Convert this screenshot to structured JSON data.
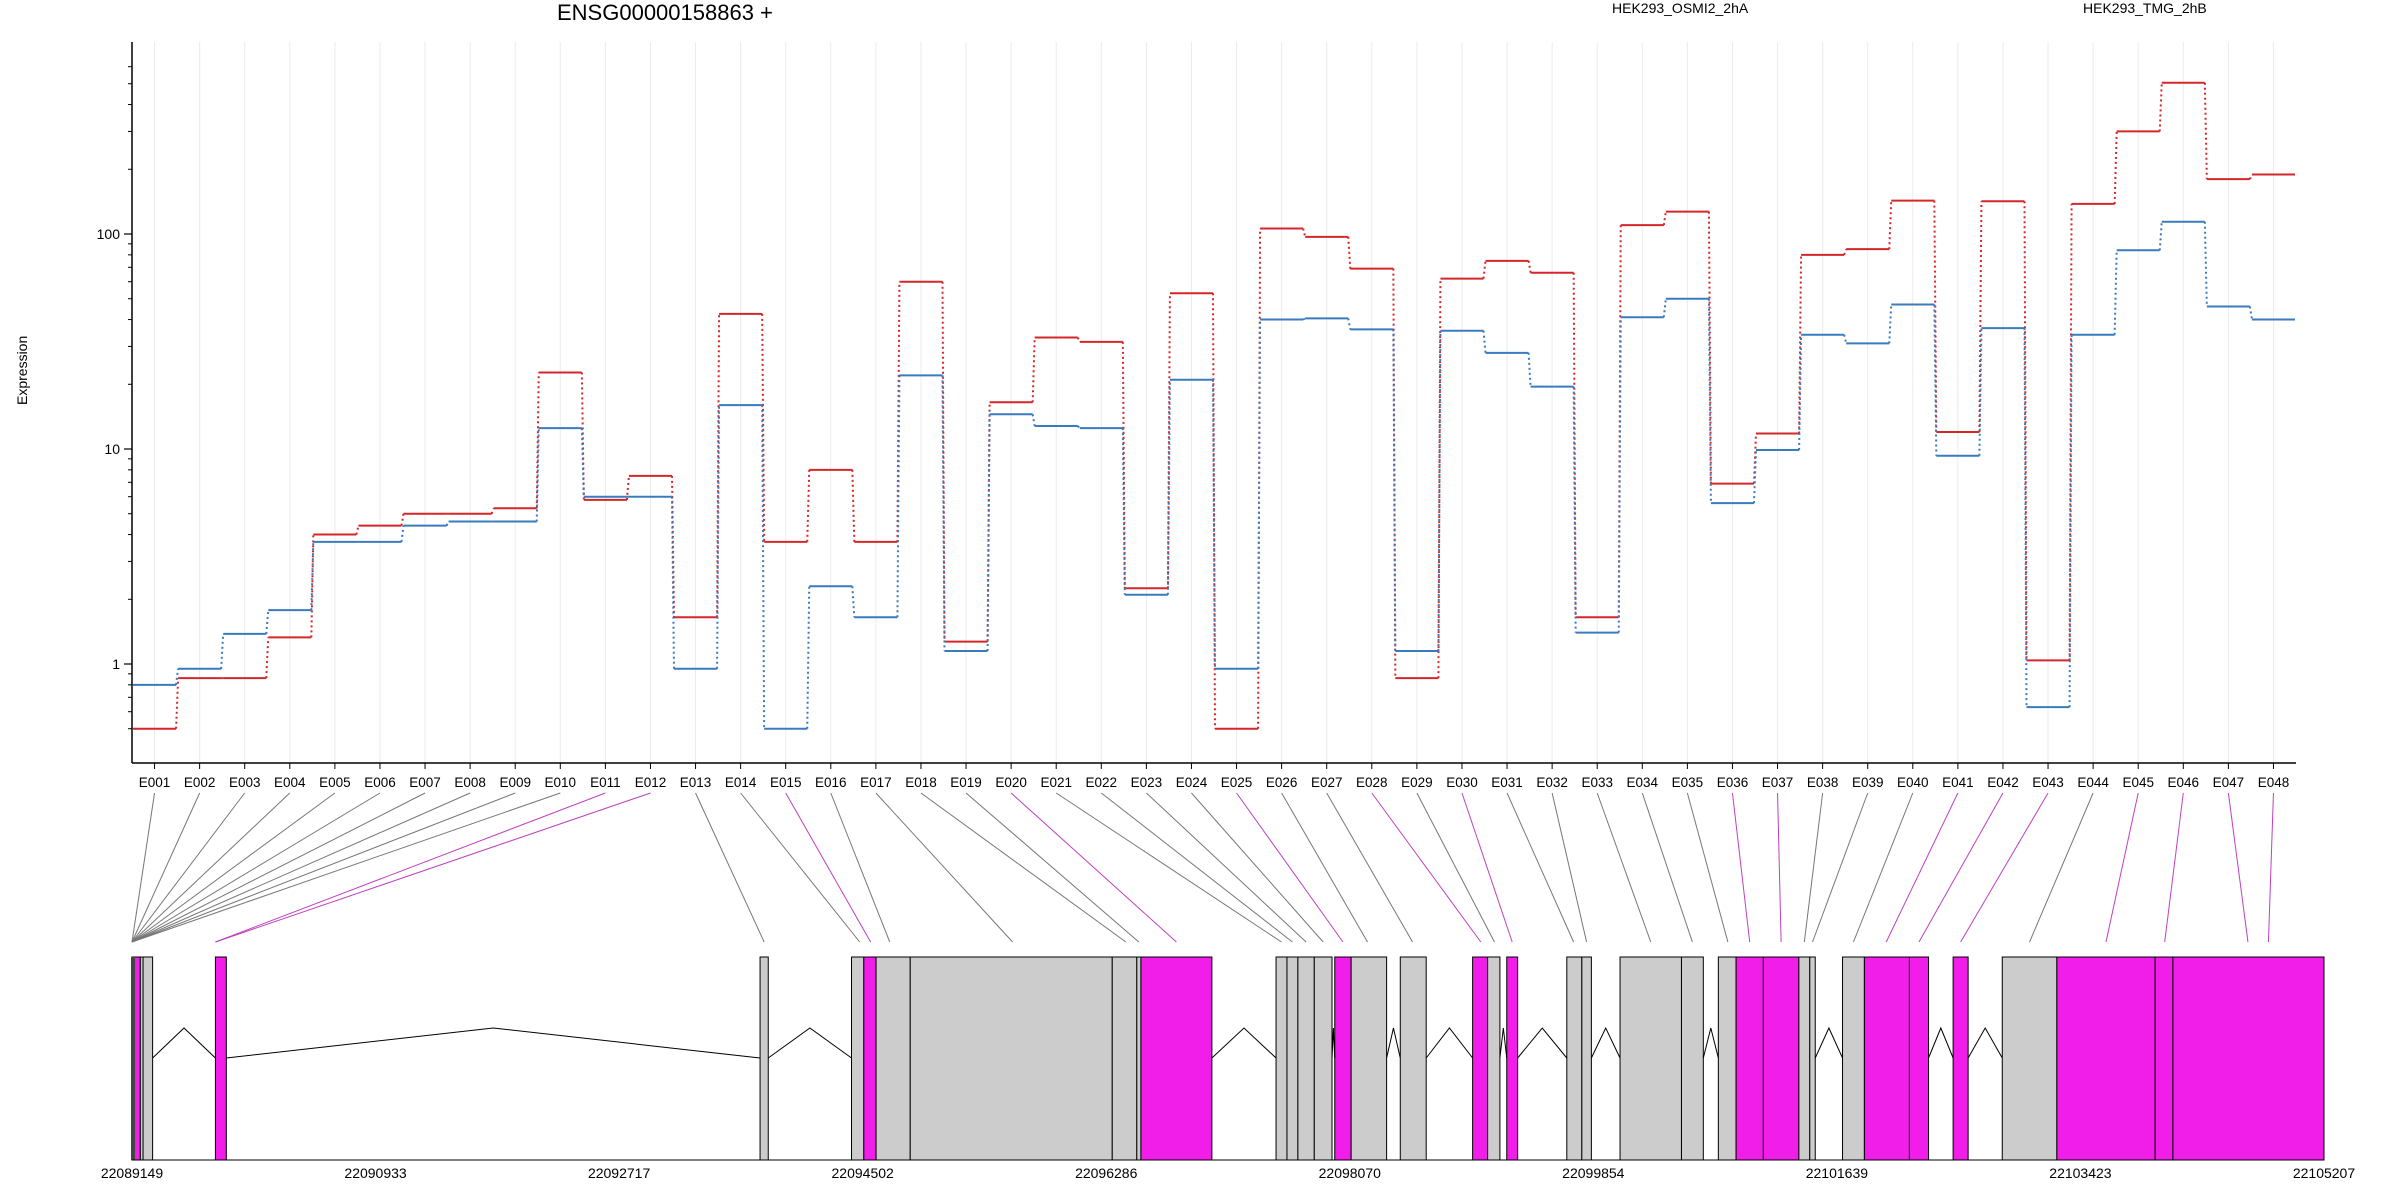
{
  "chart_data": {
    "type": "line",
    "title": "ENSG00000158863 +",
    "ylabel": "Expression",
    "yscale": "log",
    "yticks": [
      1,
      10,
      100
    ],
    "ytick_labels": [
      "1",
      "10",
      "100"
    ],
    "grid": "vertical",
    "legend_position": "top-right",
    "categories": [
      "E001",
      "E002",
      "E003",
      "E004",
      "E005",
      "E006",
      "E007",
      "E008",
      "E009",
      "E010",
      "E011",
      "E012",
      "E013",
      "E014",
      "E015",
      "E016",
      "E017",
      "E018",
      "E019",
      "E020",
      "E021",
      "E022",
      "E023",
      "E024",
      "E025",
      "E026",
      "E027",
      "E028",
      "E029",
      "E030",
      "E031",
      "E032",
      "E033",
      "E034",
      "E035",
      "E036",
      "E037",
      "E038",
      "E039",
      "E040",
      "E041",
      "E042",
      "E043",
      "E044",
      "E045",
      "E046",
      "E047",
      "E048"
    ],
    "series": [
      {
        "name": "HEK293_OSMI2_2hA",
        "color": "#d62728",
        "values": [
          0.5,
          0.86,
          0.86,
          1.33,
          4.0,
          4.4,
          5.0,
          5.0,
          5.3,
          22.7,
          5.8,
          7.5,
          1.65,
          42.5,
          3.7,
          8.0,
          3.7,
          60.0,
          1.27,
          16.5,
          33.0,
          31.5,
          2.25,
          53.0,
          0.5,
          106,
          97,
          69,
          0.86,
          62,
          75,
          66,
          1.65,
          110,
          127,
          6.9,
          11.8,
          80,
          85,
          143,
          12.0,
          142,
          1.04,
          138,
          300,
          505,
          180,
          189
        ]
      },
      {
        "name": "HEK293_TMG_2hB",
        "color": "#3a7bbf",
        "values": [
          0.8,
          0.95,
          1.38,
          1.78,
          3.7,
          3.7,
          4.4,
          4.6,
          4.6,
          12.5,
          6.0,
          6.0,
          0.95,
          16.0,
          0.5,
          2.3,
          1.65,
          22.0,
          1.15,
          14.5,
          12.8,
          12.5,
          2.1,
          21.0,
          0.95,
          40,
          40.5,
          36,
          1.15,
          35.5,
          28,
          19.5,
          1.4,
          41,
          50,
          5.6,
          9.9,
          34,
          31,
          47,
          9.3,
          36.5,
          0.63,
          34,
          84,
          114,
          46,
          40
        ]
      }
    ],
    "genomic_axis": {
      "tick_labels": [
        "22089149",
        "22090933",
        "22092717",
        "22094502",
        "22096286",
        "22098070",
        "22099854",
        "22101639",
        "22103423",
        "22105207"
      ],
      "range": [
        22089149,
        22105207
      ]
    },
    "exon_blocks": [
      [
        22089149,
        22089165,
        "grey"
      ],
      [
        22089165,
        22089210,
        "magenta"
      ],
      [
        22089210,
        22089230,
        "grey"
      ],
      [
        22089230,
        22089300,
        "grey"
      ],
      [
        22089760,
        22089840,
        "magenta"
      ],
      [
        22093750,
        22093810,
        "grey"
      ],
      [
        22094420,
        22094510,
        "grey"
      ],
      [
        22094510,
        22094600,
        "magenta"
      ],
      [
        22094600,
        22094850,
        "grey"
      ],
      [
        22094850,
        22096330,
        "grey"
      ],
      [
        22096330,
        22096510,
        "grey"
      ],
      [
        22096510,
        22096540,
        "grey"
      ],
      [
        22096540,
        22097060,
        "magenta"
      ],
      [
        22097530,
        22097610,
        "grey"
      ],
      [
        22097610,
        22097690,
        "grey"
      ],
      [
        22097690,
        22097810,
        "grey"
      ],
      [
        22097810,
        22097940,
        "grey"
      ],
      [
        22097960,
        22098080,
        "magenta"
      ],
      [
        22098080,
        22098340,
        "grey"
      ],
      [
        22098440,
        22098630,
        "grey"
      ],
      [
        22098970,
        22099080,
        "magenta"
      ],
      [
        22099080,
        22099170,
        "grey"
      ],
      [
        22099220,
        22099300,
        "magenta"
      ],
      [
        22099660,
        22099770,
        "grey"
      ],
      [
        22099770,
        22099840,
        "grey"
      ],
      [
        22100050,
        22100500,
        "grey"
      ],
      [
        22100500,
        22100660,
        "grey"
      ],
      [
        22100770,
        22100900,
        "grey"
      ],
      [
        22100900,
        22101100,
        "magenta"
      ],
      [
        22101100,
        22101360,
        "magenta"
      ],
      [
        22101360,
        22101440,
        "grey"
      ],
      [
        22101440,
        22101480,
        "grey"
      ],
      [
        22101680,
        22101840,
        "grey"
      ],
      [
        22101840,
        22102170,
        "magenta"
      ],
      [
        22102170,
        22102310,
        "magenta"
      ],
      [
        22102490,
        22102600,
        "magenta"
      ],
      [
        22102850,
        22103250,
        "grey"
      ],
      [
        22103250,
        22103970,
        "magenta"
      ],
      [
        22103970,
        22104100,
        "magenta"
      ],
      [
        22104100,
        22105207,
        "magenta"
      ]
    ],
    "connector_targets": [
      22089149,
      22089149,
      22089149,
      22089149,
      22089149,
      22089149,
      22089149,
      22089149,
      22089149,
      22089149,
      22089760,
      22089760,
      22093780,
      22094480,
      22094560,
      22094700,
      22095600,
      22096430,
      22096525,
      22096800,
      22097570,
      22097650,
      22097750,
      22097875,
      22098020,
      22098200,
      22098530,
      22099030,
      22099130,
      22099260,
      22099710,
      22099805,
      22100275,
      22100580,
      22100840,
      22101000,
      22101230,
      22101400,
      22101460,
      22101760,
      22102000,
      22102240,
      22102545,
      22103050,
      22103610,
      22104040,
      22104650,
      22104800
    ]
  }
}
